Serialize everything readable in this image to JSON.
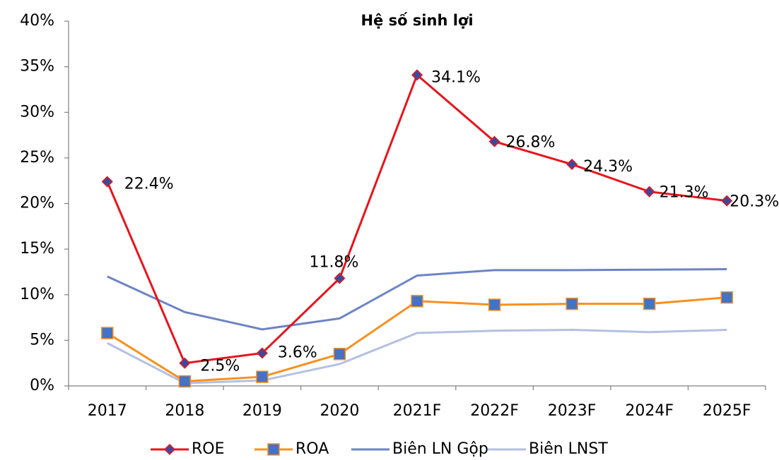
{
  "chart_data": {
    "type": "line",
    "title": "Hệ số sinh lợi",
    "categories": [
      "2017",
      "2018",
      "2019",
      "2020",
      "2021F",
      "2022F",
      "2023F",
      "2024F",
      "2025F"
    ],
    "series": [
      {
        "name": "ROE",
        "color": "#e8141c",
        "marker": "diamond",
        "marker_fill": "#3b4a9e",
        "values": [
          22.4,
          2.5,
          3.6,
          11.8,
          34.1,
          26.8,
          24.3,
          21.3,
          20.3
        ],
        "value_labels": [
          "22.4%",
          "2.5%",
          "3.6%",
          "11.8%",
          "34.1%",
          "26.8%",
          "24.3%",
          "21.3%",
          "20.3%"
        ]
      },
      {
        "name": "ROA",
        "color": "#f7901e",
        "marker": "square",
        "marker_fill": "#4472c4",
        "values": [
          5.8,
          0.5,
          1.0,
          3.5,
          9.3,
          8.9,
          9.0,
          9.0,
          9.7
        ]
      },
      {
        "name": "Biên LN Gộp",
        "color": "#6d84c4",
        "values": [
          12.0,
          8.1,
          6.2,
          7.4,
          12.1,
          12.7,
          12.7,
          12.75,
          12.8
        ]
      },
      {
        "name": "Biên LNST",
        "color": "#b4c0e0",
        "values": [
          4.7,
          0.3,
          0.6,
          2.4,
          5.8,
          6.05,
          6.15,
          5.9,
          6.15
        ]
      }
    ],
    "ylim": [
      0,
      40
    ],
    "yticks": [
      {
        "value": 0,
        "label": "0%"
      },
      {
        "value": 5,
        "label": "5%"
      },
      {
        "value": 10,
        "label": "10%"
      },
      {
        "value": 15,
        "label": "15%"
      },
      {
        "value": 20,
        "label": "20%"
      },
      {
        "value": 25,
        "label": "25%"
      },
      {
        "value": 30,
        "label": "30%"
      },
      {
        "value": 35,
        "label": "35%"
      },
      {
        "value": 40,
        "label": "40%"
      }
    ],
    "grid": false,
    "legend": "bottom"
  }
}
